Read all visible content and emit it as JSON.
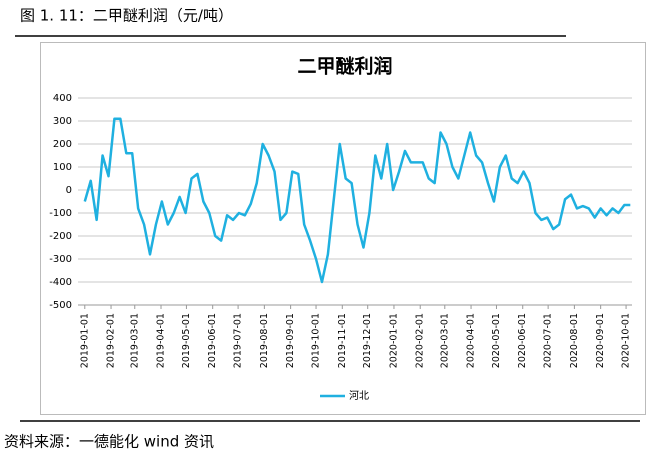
{
  "figure_caption": "图 1. 11：二甲醚利润（元/吨）",
  "source": "资料来源：一德能化  wind 资讯",
  "chart_data": {
    "type": "line",
    "title": "二甲醚利润",
    "x": [
      "2019-01-01",
      "2019-01-08",
      "2019-01-15",
      "2019-01-22",
      "2019-01-29",
      "2019-02-05",
      "2019-02-12",
      "2019-02-19",
      "2019-02-26",
      "2019-03-05",
      "2019-03-12",
      "2019-03-19",
      "2019-03-26",
      "2019-04-02",
      "2019-04-09",
      "2019-04-16",
      "2019-04-23",
      "2019-04-30",
      "2019-05-07",
      "2019-05-14",
      "2019-05-21",
      "2019-05-28",
      "2019-06-04",
      "2019-06-11",
      "2019-06-18",
      "2019-06-25",
      "2019-07-02",
      "2019-07-09",
      "2019-07-16",
      "2019-07-23",
      "2019-07-30",
      "2019-08-06",
      "2019-08-13",
      "2019-08-20",
      "2019-08-27",
      "2019-09-03",
      "2019-09-10",
      "2019-09-17",
      "2019-09-24",
      "2019-10-01",
      "2019-10-08",
      "2019-10-15",
      "2019-10-22",
      "2019-10-29",
      "2019-11-05",
      "2019-11-12",
      "2019-11-19",
      "2019-11-26",
      "2019-12-03",
      "2019-12-10",
      "2019-12-17",
      "2019-12-24",
      "2019-12-31",
      "2020-01-07",
      "2020-01-14",
      "2020-01-21",
      "2020-01-28",
      "2020-02-04",
      "2020-02-11",
      "2020-02-18",
      "2020-02-25",
      "2020-03-03",
      "2020-03-10",
      "2020-03-17",
      "2020-03-24",
      "2020-03-31",
      "2020-04-07",
      "2020-04-14",
      "2020-04-21",
      "2020-04-28",
      "2020-05-05",
      "2020-05-12",
      "2020-05-19",
      "2020-05-26",
      "2020-06-02",
      "2020-06-09",
      "2020-06-16",
      "2020-06-23",
      "2020-06-30",
      "2020-07-07",
      "2020-07-14",
      "2020-07-21",
      "2020-07-28",
      "2020-08-04",
      "2020-08-11",
      "2020-08-18",
      "2020-08-25",
      "2020-09-01",
      "2020-09-08",
      "2020-09-15",
      "2020-09-22",
      "2020-09-29",
      "2020-10-06"
    ],
    "series": [
      {
        "name": "河北",
        "color": "#1fb0e0",
        "values": [
          -50,
          40,
          -130,
          150,
          60,
          310,
          310,
          160,
          160,
          -80,
          -150,
          -280,
          -150,
          -50,
          -150,
          -100,
          -30,
          -100,
          50,
          70,
          -50,
          -100,
          -200,
          -220,
          -110,
          -130,
          -100,
          -110,
          -60,
          30,
          200,
          150,
          80,
          -130,
          -100,
          80,
          70,
          -150,
          -220,
          -300,
          -400,
          -280,
          -40,
          200,
          50,
          30,
          -150,
          -250,
          -100,
          150,
          50,
          200,
          0,
          80,
          170,
          120,
          120,
          120,
          50,
          30,
          250,
          200,
          100,
          50,
          150,
          250,
          150,
          120,
          30,
          -50,
          100,
          150,
          50,
          30,
          80,
          30,
          -100,
          -130,
          -120,
          -170,
          -150,
          -40,
          -20,
          -80,
          -70,
          -80,
          -120,
          -80,
          -110,
          -80,
          -100,
          -65,
          -65
        ]
      }
    ],
    "xlim": [
      "2018-12-24",
      "2020-10-08"
    ],
    "xticks": [
      "2019-01-01",
      "2019-02-01",
      "2019-03-01",
      "2019-04-01",
      "2019-05-01",
      "2019-06-01",
      "2019-07-01",
      "2019-08-01",
      "2019-09-01",
      "2019-10-01",
      "2019-11-01",
      "2019-12-01",
      "2020-01-01",
      "2020-02-01",
      "2020-03-01",
      "2020-04-01",
      "2020-05-01",
      "2020-06-01",
      "2020-07-01",
      "2020-08-01",
      "2020-09-01",
      "2020-10-01"
    ],
    "ylim": [
      -500,
      400
    ],
    "yticks": [
      -500,
      -400,
      -300,
      -200,
      -100,
      0,
      100,
      200,
      300,
      400
    ],
    "grid": true,
    "legend": "bottom"
  }
}
